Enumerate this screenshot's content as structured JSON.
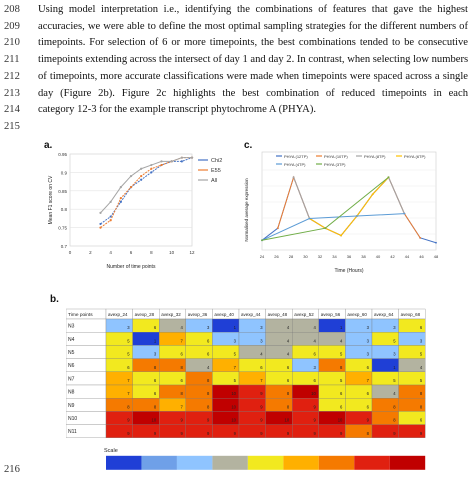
{
  "text_lines": [
    {
      "num": "208",
      "text": "Using model interpretation i.e., identifying the combinations of features that gave the highest",
      "justify": true
    },
    {
      "num": "209",
      "text": "accuracies, we were able to define the most optimal sampling strategies for the different numbers of",
      "justify": true
    },
    {
      "num": "210",
      "text": "timepoints. For selection of 6 or more timepoints, the best combinations tended to be consecutive",
      "justify": true
    },
    {
      "num": "211",
      "text": "timepoints extending across the intersect of day 1 and day 2. In contrast, when selecting low numbers",
      "justify": true
    },
    {
      "num": "212",
      "text": "of timepoints, more accurate classifications were made when timepoints were spaced across a single",
      "justify": true
    },
    {
      "num": "213",
      "text": "day (Figure 2b). Figure 2c highlights the best combination of reduced timepoints in each",
      "justify": true
    },
    {
      "num": "214",
      "text": "category 12-3 for the example transcript phytochrome A (PHYA).",
      "justify": false
    },
    {
      "num": "215",
      "text": "",
      "justify": false
    }
  ],
  "line_216": "216",
  "panel_labels": {
    "a": "a.",
    "b": "b.",
    "c": "c."
  },
  "chart_data": [
    {
      "type": "line",
      "panel": "a",
      "xlabel": "Number of time points",
      "ylabel": "Mean F1 score on CV",
      "xlim": [
        0,
        12
      ],
      "ylim": [
        0.7,
        0.95
      ],
      "xticks": [
        "0",
        "2",
        "4",
        "6",
        "8",
        "10",
        "12"
      ],
      "yticks": [
        "0.7",
        "0.75",
        "0.8",
        "0.85",
        "0.9",
        "0.95"
      ],
      "legend_position": "right",
      "series": [
        {
          "name": "Chi2",
          "color": "#4472c4",
          "x": [
            3,
            4,
            5,
            6,
            7,
            8,
            9,
            10,
            11,
            12
          ],
          "y": [
            0.76,
            0.78,
            0.82,
            0.86,
            0.88,
            0.9,
            0.92,
            0.93,
            0.93,
            0.94
          ]
        },
        {
          "name": "E55",
          "color": "#ed7d31",
          "x": [
            3,
            4,
            5,
            6,
            7,
            8,
            9,
            10,
            11,
            12
          ],
          "y": [
            0.75,
            0.77,
            0.83,
            0.86,
            0.89,
            0.91,
            0.92,
            0.93,
            0.94,
            0.94
          ]
        },
        {
          "name": "All",
          "color": "#a5a5a5",
          "x": [
            3,
            4,
            5,
            6,
            7,
            8,
            9,
            10,
            11,
            12
          ],
          "y": [
            0.79,
            0.82,
            0.86,
            0.89,
            0.91,
            0.92,
            0.93,
            0.93,
            0.94,
            0.94
          ]
        }
      ]
    },
    {
      "type": "line",
      "panel": "c",
      "xlabel": "Time (Hours)",
      "ylabel": "Normalised average expression",
      "xticks": [
        "24",
        "26",
        "28",
        "30",
        "32",
        "34",
        "36",
        "38",
        "40",
        "42",
        "44",
        "46",
        "48"
      ],
      "legend": [
        "PHYA (12TP)",
        "PHYA (10TP)",
        "PHYA (8TP)",
        "PHYA (6TP)",
        "PHYA (4TP)",
        "PHYA (3TP)"
      ],
      "series": [
        {
          "name": "PHYA (12TP)",
          "color": "#4472c4",
          "x": [
            24,
            28,
            32,
            36,
            40,
            44,
            48,
            52,
            56,
            60,
            64,
            68
          ],
          "y": [
            0.4,
            0.9,
            3.0,
            1.3,
            0.9,
            0.6,
            1.4,
            2.3,
            3.0,
            1.5,
            0.5,
            0.3
          ]
        },
        {
          "name": "PHYA (10TP)",
          "color": "#ed7d31",
          "x": [
            28,
            32,
            36,
            40,
            44,
            48,
            52,
            56,
            60,
            64
          ],
          "y": [
            0.9,
            3.0,
            1.3,
            0.9,
            0.6,
            1.4,
            2.3,
            3.0,
            1.5,
            0.5
          ]
        },
        {
          "name": "PHYA (8TP)",
          "color": "#a5a5a5",
          "x": [
            32,
            36,
            40,
            44,
            48,
            52,
            56,
            60
          ],
          "y": [
            3.0,
            1.3,
            0.9,
            0.6,
            1.4,
            2.3,
            3.0,
            1.5
          ]
        },
        {
          "name": "PHYA (6TP)",
          "color": "#ffc000",
          "x": [
            36,
            40,
            44,
            48,
            52,
            56
          ],
          "y": [
            1.3,
            0.9,
            0.6,
            1.4,
            2.3,
            3.0
          ]
        },
        {
          "name": "PHYA (4TP)",
          "color": "#5b9bd5",
          "x": [
            24,
            36,
            48,
            60
          ],
          "y": [
            0.4,
            1.3,
            1.4,
            1.5
          ]
        },
        {
          "name": "PHYA (3TP)",
          "color": "#70ad47",
          "x": [
            24,
            40,
            56
          ],
          "y": [
            0.4,
            0.9,
            3.0
          ]
        }
      ]
    },
    {
      "type": "heatmap",
      "panel": "b",
      "corner_label": "Time points",
      "columns": [
        "avexp_24",
        "avexp_28",
        "avexp_32",
        "avexp_36",
        "avexp_40",
        "avexp_44",
        "avexp_48",
        "avexp_52",
        "avexp_56",
        "avexp_60",
        "avexp_64",
        "avexp_68"
      ],
      "rows": [
        "N3",
        "N4",
        "N5",
        "N6",
        "N7",
        "N8",
        "N9",
        "N10",
        "N11"
      ],
      "values": [
        [
          3,
          6,
          4,
          3,
          1,
          3,
          4,
          4,
          1,
          3,
          3,
          6
        ],
        [
          5,
          1,
          7,
          6,
          3,
          3,
          4,
          4,
          4,
          3,
          5,
          3
        ],
        [
          5,
          3,
          6,
          6,
          5,
          4,
          4,
          6,
          5,
          3,
          3,
          5
        ],
        [
          6,
          8,
          8,
          4,
          7,
          6,
          6,
          3,
          8,
          6,
          1,
          4
        ],
        [
          7,
          6,
          6,
          8,
          5,
          7,
          6,
          6,
          5,
          7,
          5,
          5
        ],
        [
          7,
          6,
          8,
          8,
          10,
          9,
          8,
          10,
          6,
          6,
          4,
          8
        ],
        [
          8,
          8,
          7,
          8,
          10,
          9,
          8,
          9,
          6,
          6,
          8,
          8
        ],
        [
          9,
          10,
          9,
          9,
          10,
          9,
          10,
          9,
          10,
          9,
          8,
          6
        ],
        [
          9,
          9,
          9,
          9,
          9,
          9,
          9,
          9,
          9,
          8,
          9,
          9
        ]
      ],
      "scale_label": "Scale",
      "scale_colors": [
        "#1f3fd6",
        "#6fa0e8",
        "#8fc4ff",
        "#b3b3a0",
        "#f2e91f",
        "#ffb000",
        "#f57a00",
        "#e02010",
        "#c00000"
      ]
    }
  ]
}
